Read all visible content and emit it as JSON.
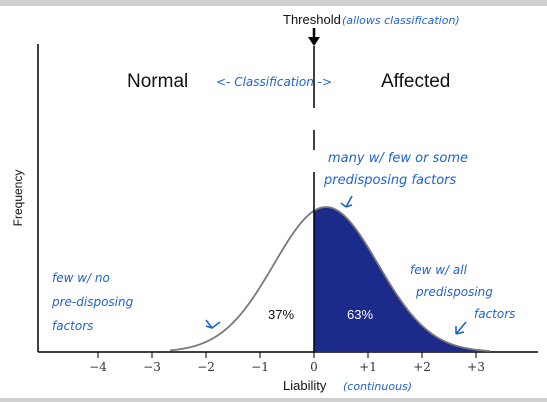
{
  "threshold": {
    "label": "Threshold",
    "note": "(allows classification)"
  },
  "regions": {
    "left": "Normal",
    "right": "Affected",
    "classification": "<- Classification ->"
  },
  "axes": {
    "ylabel": "Frequency",
    "xlabel": "Liability",
    "xlabel_note": "(continuous)",
    "ticks": [
      "−4",
      "−3",
      "−2",
      "−1",
      "0",
      "+1",
      "+2",
      "+3"
    ]
  },
  "percentages": {
    "normal": "37%",
    "affected": "63%"
  },
  "annotations": {
    "peak": [
      "many w/ few or some",
      "predisposing factors"
    ],
    "left_tail": [
      "few w/ no",
      "pre-disposing",
      "factors"
    ],
    "right_tail": [
      "few w/ all",
      "predisposing",
      "factors"
    ]
  },
  "colors": {
    "affected_fill": "#1c2b8a",
    "handwriting": "#1f63c9",
    "frame": "#d0d0d0"
  }
}
